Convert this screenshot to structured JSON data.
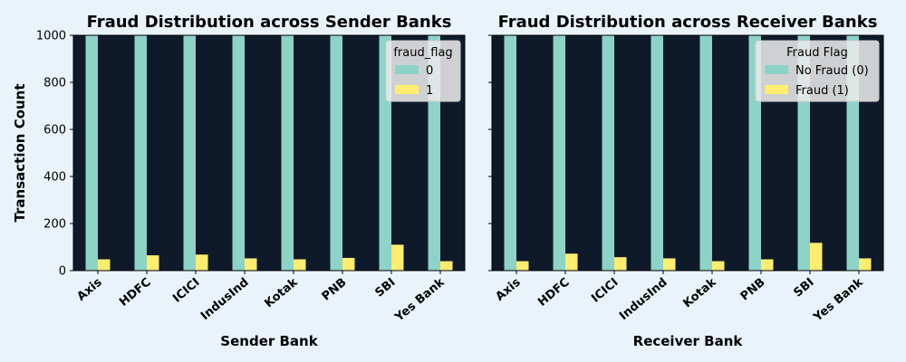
{
  "colors": {
    "page_background": "#eaf3fc",
    "plot_background": "#0e1a2a",
    "series_0": "#8dd3c7",
    "series_1": "#ffed6f"
  },
  "chart_data": [
    {
      "type": "bar",
      "title": "Fraud Distribution across Sender Banks",
      "xlabel": "Sender Bank",
      "ylabel": "Transaction Count",
      "ylim": [
        0,
        1000
      ],
      "yticks": [
        0,
        200,
        400,
        600,
        800,
        1000
      ],
      "categories": [
        "Axis",
        "HDFC",
        "ICICI",
        "IndusInd",
        "Kotak",
        "PNB",
        "SBI",
        "Yes Bank"
      ],
      "series": [
        {
          "name": "0",
          "values": [
            1000,
            1000,
            1000,
            1000,
            1000,
            1000,
            1000,
            1000
          ]
        },
        {
          "name": "1",
          "values": [
            48,
            65,
            68,
            52,
            48,
            54,
            110,
            40
          ]
        }
      ],
      "legend": {
        "title": "fraud_flag",
        "position": "top-right"
      },
      "grid": false
    },
    {
      "type": "bar",
      "title": "Fraud Distribution across Receiver Banks",
      "xlabel": "Receiver Bank",
      "ylabel": "",
      "ylim": [
        0,
        1000
      ],
      "yticks": [
        0,
        200,
        400,
        600,
        800,
        1000
      ],
      "categories": [
        "Axis",
        "HDFC",
        "ICICI",
        "IndusInd",
        "Kotak",
        "PNB",
        "SBI",
        "Yes Bank"
      ],
      "series": [
        {
          "name": "No Fraud (0)",
          "values": [
            1000,
            1000,
            1000,
            1000,
            1000,
            1000,
            1000,
            1000
          ]
        },
        {
          "name": "Fraud (1)",
          "values": [
            40,
            72,
            57,
            52,
            40,
            48,
            118,
            52
          ]
        }
      ],
      "legend": {
        "title": "Fraud Flag",
        "position": "top-right"
      },
      "grid": false
    }
  ]
}
